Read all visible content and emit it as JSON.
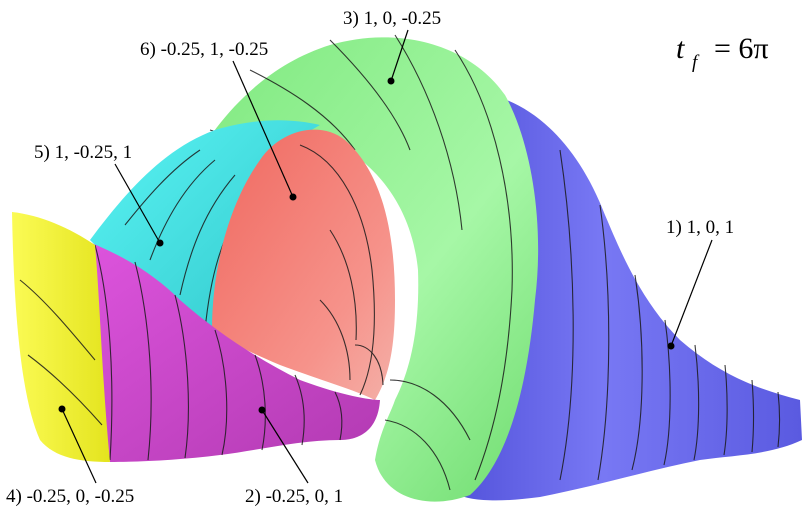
{
  "annotation": {
    "time_symbol": "t",
    "time_subscript": "f",
    "time_value": "= 6π"
  },
  "surfaces": [
    {
      "id": "1",
      "label": "1) 1, 0, 1",
      "color": "#6f6ff0"
    },
    {
      "id": "2",
      "label": "2) -0.25, 0, 1",
      "color": "#d94fd9"
    },
    {
      "id": "3",
      "label": "3) 1, 0, -0.25",
      "color": "#8df08d"
    },
    {
      "id": "4",
      "label": "4) -0.25, 0, -0.25",
      "color": "#f2f23a"
    },
    {
      "id": "5",
      "label": "5) 1, -0.25, 1",
      "color": "#40e8e8"
    },
    {
      "id": "6",
      "label": "6) -0.25, 1, -0.25",
      "color": "#f27a72"
    }
  ]
}
